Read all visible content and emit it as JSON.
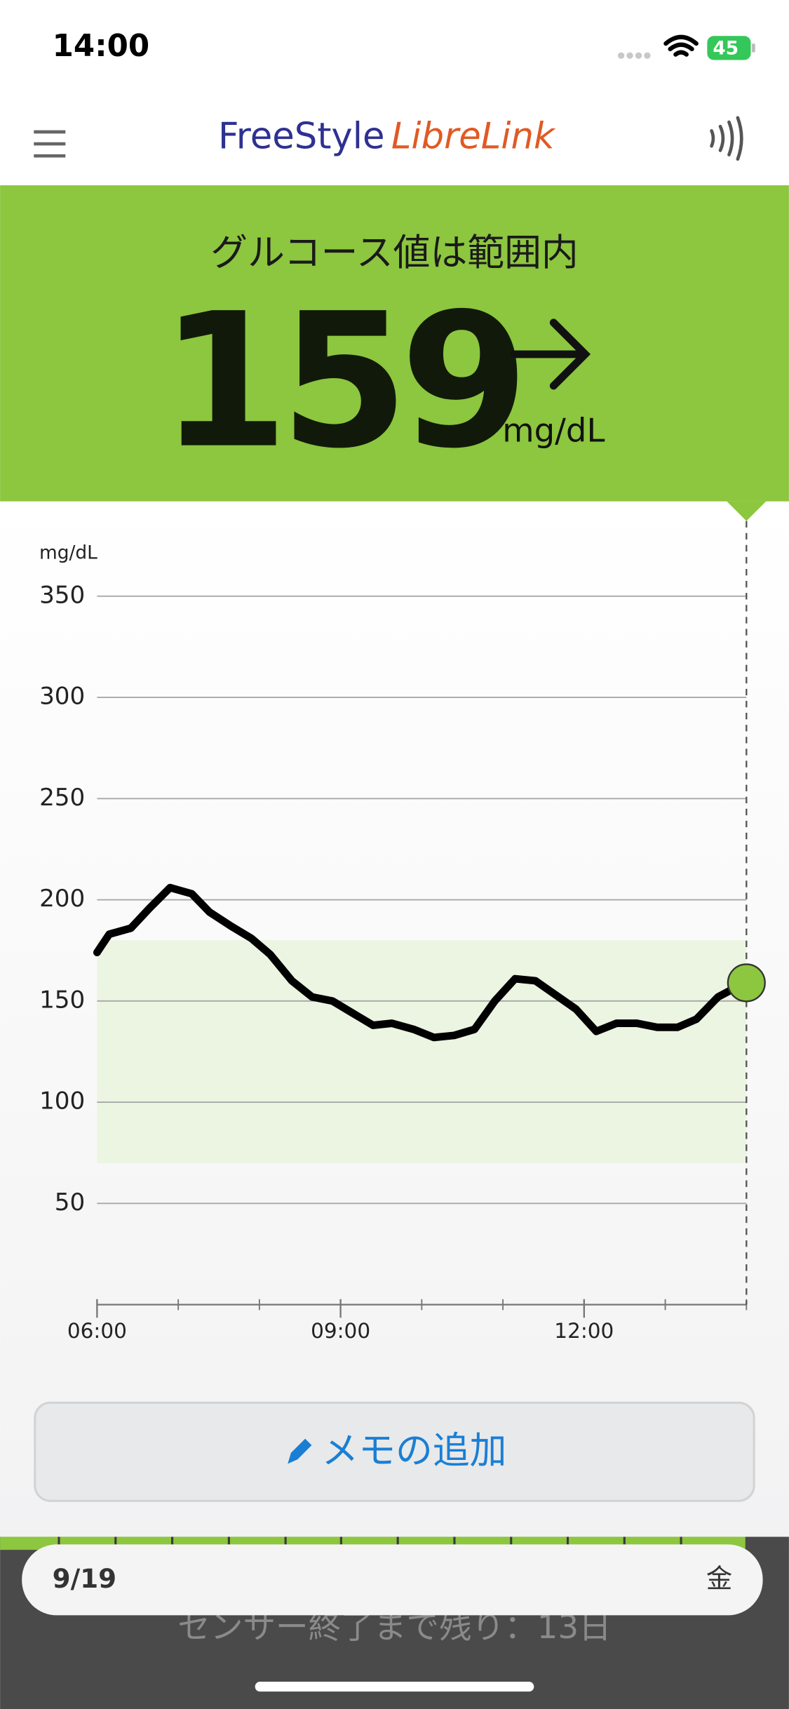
{
  "status_bar": {
    "time": "14:00",
    "battery": "45"
  },
  "header": {
    "brand": "FreeStyle",
    "product": "LibreLink"
  },
  "reading": {
    "status": "グルコース値は範囲内",
    "value": 159,
    "unit": "mg/dL"
  },
  "chart_data": {
    "type": "line",
    "y_unit_label": "mg/dL",
    "x": [
      "06:00",
      "06:09",
      "06:25",
      "06:39",
      "06:54",
      "07:10",
      "07:23",
      "07:39",
      "07:54",
      "08:08",
      "08:24",
      "08:39",
      "08:54",
      "09:09",
      "09:24",
      "09:38",
      "09:54",
      "10:09",
      "10:24",
      "10:39",
      "10:54",
      "11:09",
      "11:24",
      "11:39",
      "11:54",
      "12:09",
      "12:24",
      "12:39",
      "12:54",
      "13:09",
      "13:23",
      "13:39",
      "13:53"
    ],
    "series": [
      {
        "color": "#000000",
        "values": [
          174,
          183,
          186,
          196,
          206,
          203,
          194,
          187,
          181,
          173,
          160,
          152,
          150,
          144,
          138,
          139,
          136,
          132,
          133,
          136,
          150,
          161,
          160,
          153,
          146,
          135,
          139,
          139,
          137,
          137,
          141,
          152,
          157
        ]
      }
    ],
    "xlim": [
      "06:00",
      "14:00"
    ],
    "xticks": [
      "06:00",
      "09:00",
      "12:00"
    ],
    "ylim": [
      0,
      350
    ],
    "yticks": [
      50,
      100,
      150,
      200,
      250,
      300,
      350
    ],
    "grid": true,
    "target_range": [
      70,
      180
    ],
    "target_color": "#ebf5e1",
    "current_color": "#8dc63f"
  },
  "memo_button": "メモの追加",
  "date_bar": {
    "date": "9/19",
    "weekday": "金"
  },
  "sensor": "センサー終了まで残り：13日"
}
